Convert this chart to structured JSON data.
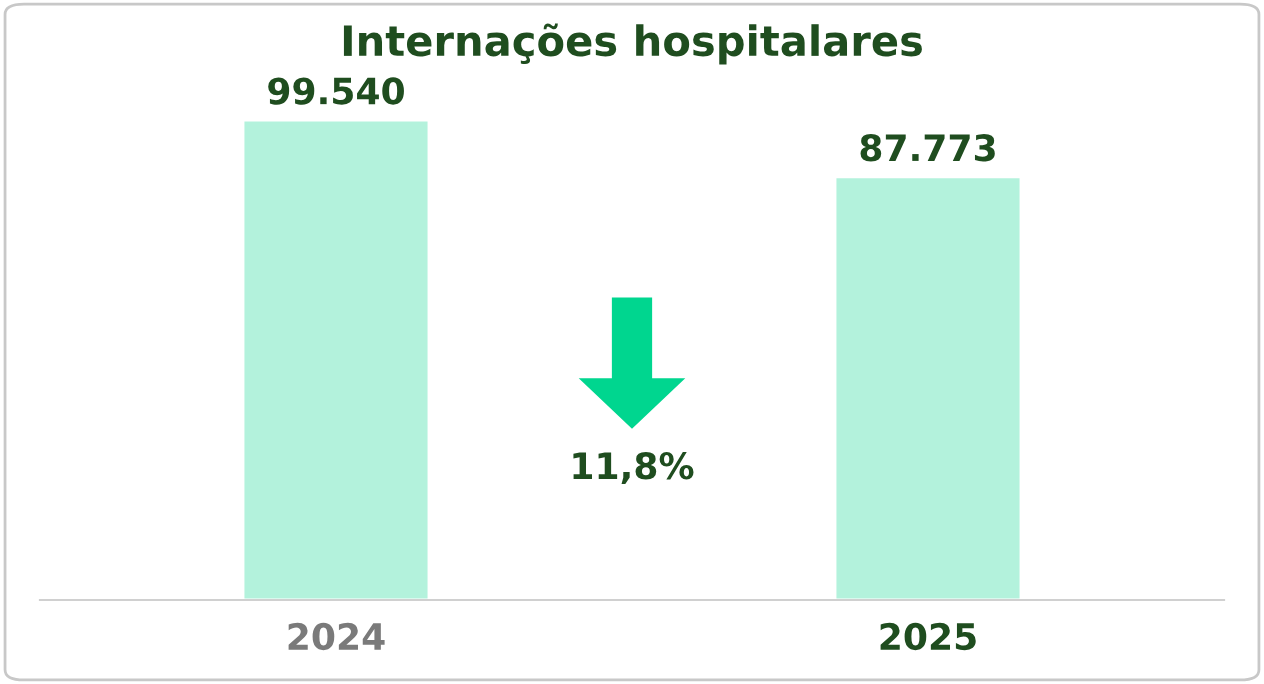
{
  "chart_data": {
    "type": "bar",
    "title": "Internações hospitalares",
    "categories": [
      "2024",
      "2025"
    ],
    "values": [
      99540,
      87773
    ],
    "value_labels": [
      "99.540",
      "87.773"
    ],
    "color": "#b3f2dc",
    "tick_labels": "x",
    "grid": false,
    "annotations": [
      "11,8%"
    ]
  }
}
